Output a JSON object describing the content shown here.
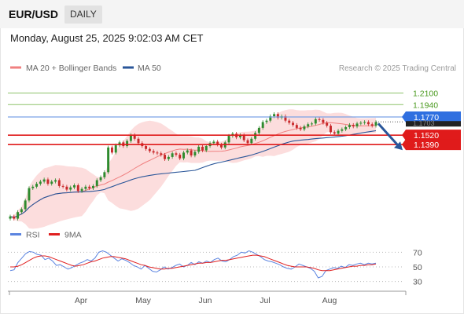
{
  "header": {
    "pair": "EUR/USD",
    "period": "DAILY"
  },
  "timestamp": "Monday, August 25, 2025 9:02:03 AM CET",
  "legend": {
    "ma20_label": "MA 20 + Bollinger Bands",
    "ma50_label": "MA 50",
    "ma20_color": "#f08080",
    "ma50_color": "#2a5699",
    "credit": "Research © 2025 Trading Central"
  },
  "rsi_legend": {
    "rsi_label": "RSI",
    "ma9_label": "9MA",
    "rsi_color": "#5b84e0",
    "ma9_color": "#e02020"
  },
  "colors": {
    "up_candle": "#2e8b2e",
    "down_candle": "#c8282a",
    "resistance_green": "#8dc36a",
    "pivot_blue": "#2f6fe0",
    "support_red": "#e01b1b",
    "band_fill": "#fbd4d4",
    "forecast_arrow": "#2a5699"
  },
  "chart_data": [
    {
      "type": "candlestick",
      "title": "",
      "x_range": [
        "2025-02-24",
        "2025-08-25"
      ],
      "x_tick_labels": [
        "Apr",
        "May",
        "Jun",
        "Jul",
        "Aug"
      ],
      "ylim": [
        1.03,
        1.23
      ],
      "current_price": 1.1703,
      "levels": [
        {
          "label": "1.2100",
          "value": 1.21,
          "kind": "resistance"
        },
        {
          "label": "1.1940",
          "value": 1.194,
          "kind": "resistance"
        },
        {
          "label": "1.1770",
          "value": 1.177,
          "kind": "pivot"
        },
        {
          "label": "1.1703",
          "value": 1.1703,
          "kind": "last"
        },
        {
          "label": "1.1520",
          "value": 1.152,
          "kind": "support"
        },
        {
          "label": "1.1390",
          "value": 1.139,
          "kind": "support"
        }
      ],
      "forecast": {
        "direction": "down",
        "from": 1.168,
        "to": 1.14
      },
      "closes": [
        1.04,
        1.037,
        1.046,
        1.05,
        1.062,
        1.079,
        1.081,
        1.085,
        1.088,
        1.091,
        1.085,
        1.088,
        1.09,
        1.082,
        1.081,
        1.077,
        1.08,
        1.083,
        1.075,
        1.078,
        1.081,
        1.079,
        1.082,
        1.09,
        1.094,
        1.101,
        1.135,
        1.128,
        1.138,
        1.142,
        1.137,
        1.144,
        1.152,
        1.147,
        1.141,
        1.137,
        1.133,
        1.13,
        1.128,
        1.127,
        1.125,
        1.119,
        1.122,
        1.127,
        1.125,
        1.12,
        1.128,
        1.131,
        1.124,
        1.129,
        1.136,
        1.131,
        1.137,
        1.141,
        1.143,
        1.139,
        1.135,
        1.142,
        1.151,
        1.154,
        1.149,
        1.152,
        1.145,
        1.141,
        1.147,
        1.155,
        1.162,
        1.17,
        1.172,
        1.178,
        1.181,
        1.176,
        1.178,
        1.172,
        1.169,
        1.166,
        1.162,
        1.16,
        1.164,
        1.167,
        1.168,
        1.174,
        1.173,
        1.169,
        1.165,
        1.156,
        1.154,
        1.158,
        1.16,
        1.163,
        1.166,
        1.164,
        1.168,
        1.169,
        1.17,
        1.167,
        1.165,
        1.17
      ]
    },
    {
      "type": "line",
      "title": "",
      "series": [
        {
          "name": "RSI",
          "values": [
            45,
            46,
            56,
            62,
            68,
            71,
            70,
            67,
            66,
            60,
            62,
            58,
            52,
            53,
            50,
            47,
            49,
            52,
            55,
            57,
            60,
            58,
            62,
            70,
            72,
            70,
            66,
            62,
            58,
            61,
            59,
            56,
            52,
            50,
            47,
            52,
            48,
            44,
            43,
            46,
            50,
            47,
            49,
            52,
            54,
            50,
            52,
            56,
            53,
            57,
            55,
            58,
            56,
            60,
            62,
            58,
            57,
            60,
            64,
            66,
            70,
            69,
            72,
            70,
            67,
            64,
            60,
            58,
            57,
            55,
            53,
            50,
            48,
            47,
            50,
            54,
            52,
            50,
            48,
            44,
            35,
            37,
            45,
            47,
            49,
            48,
            51,
            49,
            53,
            52,
            54,
            55,
            53,
            55,
            54,
            55
          ]
        },
        {
          "name": "9MA",
          "values": [
            50,
            50,
            51,
            53,
            56,
            59,
            62,
            64,
            65,
            65,
            64,
            62,
            60,
            58,
            56,
            54,
            52,
            51,
            52,
            53,
            55,
            57,
            58,
            60,
            62,
            63,
            64,
            64,
            63,
            62,
            61,
            59,
            57,
            55,
            53,
            52,
            50,
            49,
            48,
            47,
            47,
            48,
            48,
            49,
            50,
            51,
            52,
            53,
            54,
            55,
            55,
            56,
            56,
            57,
            58,
            59,
            59,
            60,
            61,
            62,
            63,
            64,
            65,
            66,
            66,
            65,
            64,
            62,
            60,
            58,
            56,
            54,
            52,
            51,
            50,
            50,
            50,
            50,
            49,
            48,
            46,
            45,
            45,
            45,
            46,
            47,
            48,
            49,
            50,
            51,
            51,
            52,
            52,
            53,
            53,
            54
          ]
        }
      ],
      "ylim": [
        20,
        80
      ],
      "y_ticks": [
        "70",
        "50",
        "30"
      ]
    }
  ]
}
